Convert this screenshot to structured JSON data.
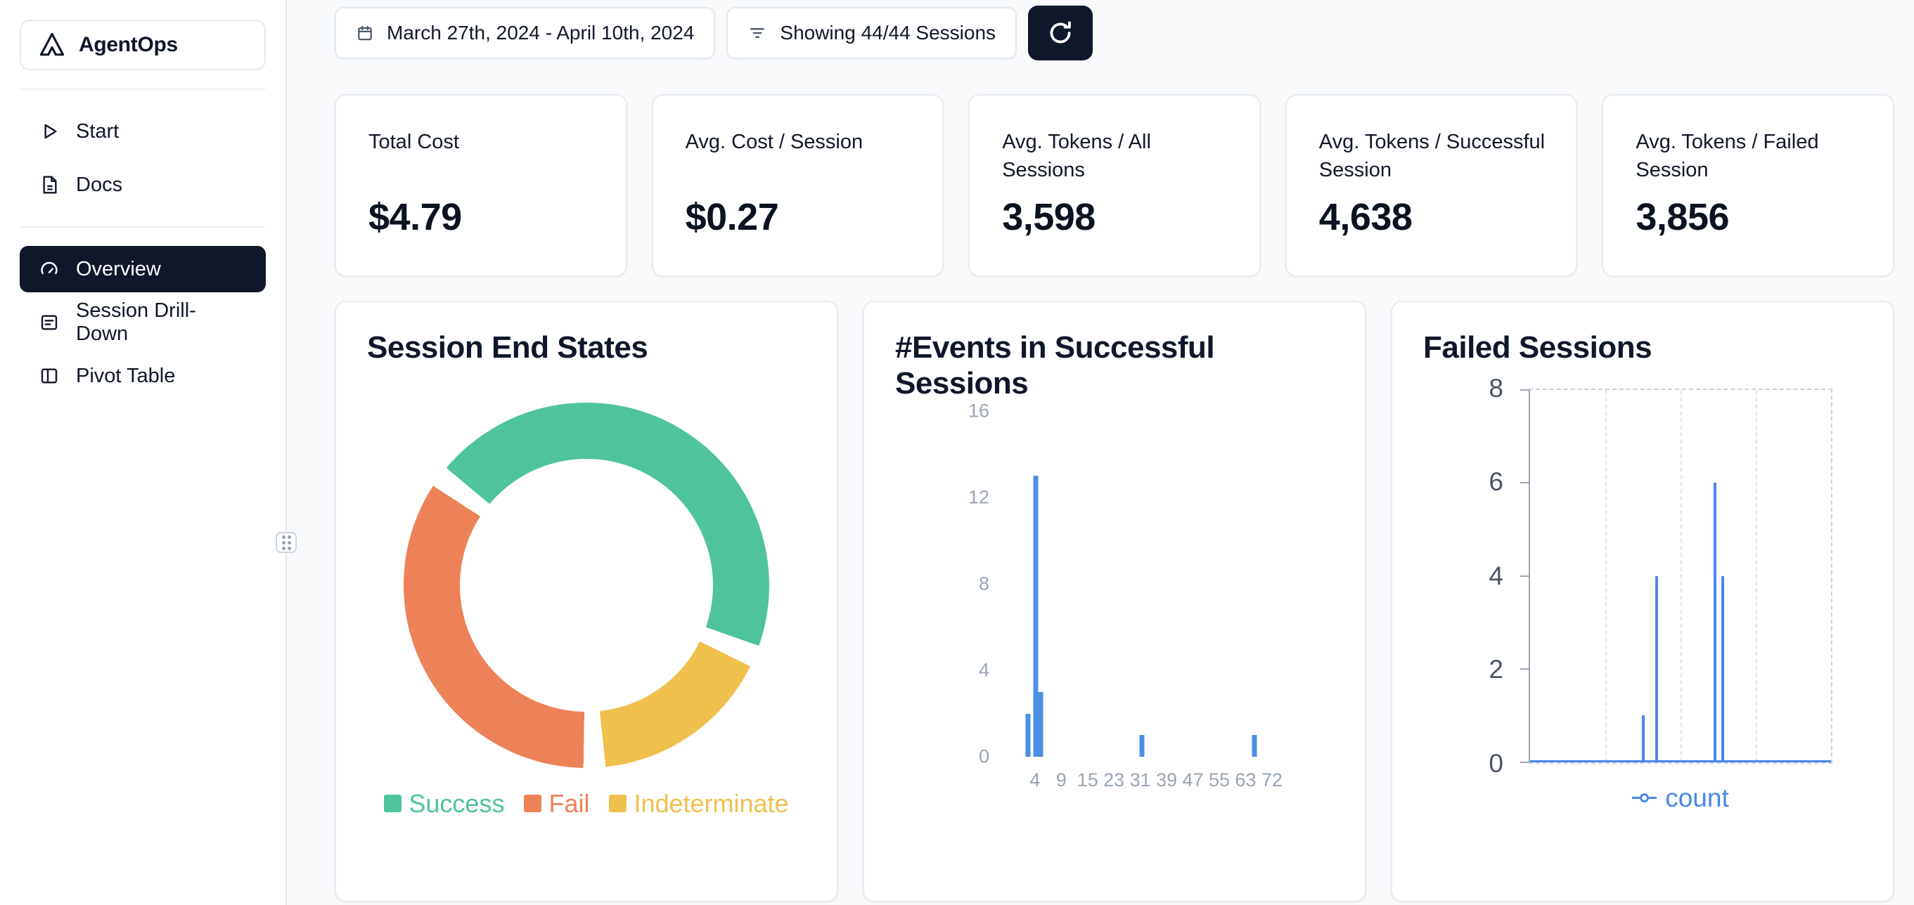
{
  "app": {
    "name": "AgentOps"
  },
  "sidebar": {
    "items": [
      {
        "label": "Start"
      },
      {
        "label": "Docs"
      },
      {
        "label": "Overview",
        "active": true
      },
      {
        "label": "Session Drill-Down"
      },
      {
        "label": "Pivot Table"
      }
    ]
  },
  "toolbar": {
    "date_range": "March 27th, 2024 - April 10th, 2024",
    "sessions_filter": "Showing 44/44 Sessions"
  },
  "stats": [
    {
      "label": "Total Cost",
      "value": "$4.79"
    },
    {
      "label": "Avg. Cost / Session",
      "value": "$0.27"
    },
    {
      "label": "Avg. Tokens / All Sessions",
      "value": "3,598"
    },
    {
      "label": "Avg. Tokens / Successful Session",
      "value": "4,638"
    },
    {
      "label": "Avg. Tokens / Failed Session",
      "value": "3,856"
    }
  ],
  "chart_data": [
    {
      "type": "pie",
      "title": "Session End States",
      "donut": true,
      "start_angle_deg": -50,
      "gap_deg": 7,
      "segments_clockwise": [
        {
          "label": "Success",
          "pct": 47,
          "color": "#4FC39B"
        },
        {
          "label": "Indeterminate",
          "pct": 17,
          "color": "#F0C04D"
        },
        {
          "label": "Fail",
          "pct": 36,
          "color": "#ED8157"
        }
      ],
      "legend": [
        {
          "label": "Success",
          "color": "#4FC39B"
        },
        {
          "label": "Fail",
          "color": "#ED8157"
        },
        {
          "label": "Indeterminate",
          "color": "#F0C04D"
        }
      ],
      "legend_position": "bottom"
    },
    {
      "type": "bar",
      "title": "#Events in Successful Sessions",
      "color": "#4A90E2",
      "ylim": [
        0,
        16
      ],
      "ytick_labels": [
        "16",
        "12",
        "8",
        "4",
        "0"
      ],
      "xtick_labels": [
        "4",
        "9",
        "15",
        "23",
        "31",
        "39",
        "47",
        "55",
        "63",
        "72"
      ],
      "bars": [
        {
          "x_frac": 0.046,
          "count": 2
        },
        {
          "x_frac": 0.071,
          "count": 13
        },
        {
          "x_frac": 0.089,
          "count": 3
        },
        {
          "x_frac": 0.433,
          "count": 1
        },
        {
          "x_frac": 0.816,
          "count": 1
        }
      ]
    },
    {
      "type": "line",
      "title": "Failed Sessions",
      "series_name": "count",
      "color": "#4A86EA",
      "ylim": [
        0,
        8
      ],
      "ytick_labels": [
        "8",
        "6",
        "4",
        "2",
        "0"
      ],
      "grid": "dashed",
      "spikes": [
        {
          "x_frac": 0.375,
          "count": 1
        },
        {
          "x_frac": 0.42,
          "count": 4
        },
        {
          "x_frac": 0.615,
          "count": 6
        },
        {
          "x_frac": 0.64,
          "count": 4
        }
      ]
    }
  ]
}
